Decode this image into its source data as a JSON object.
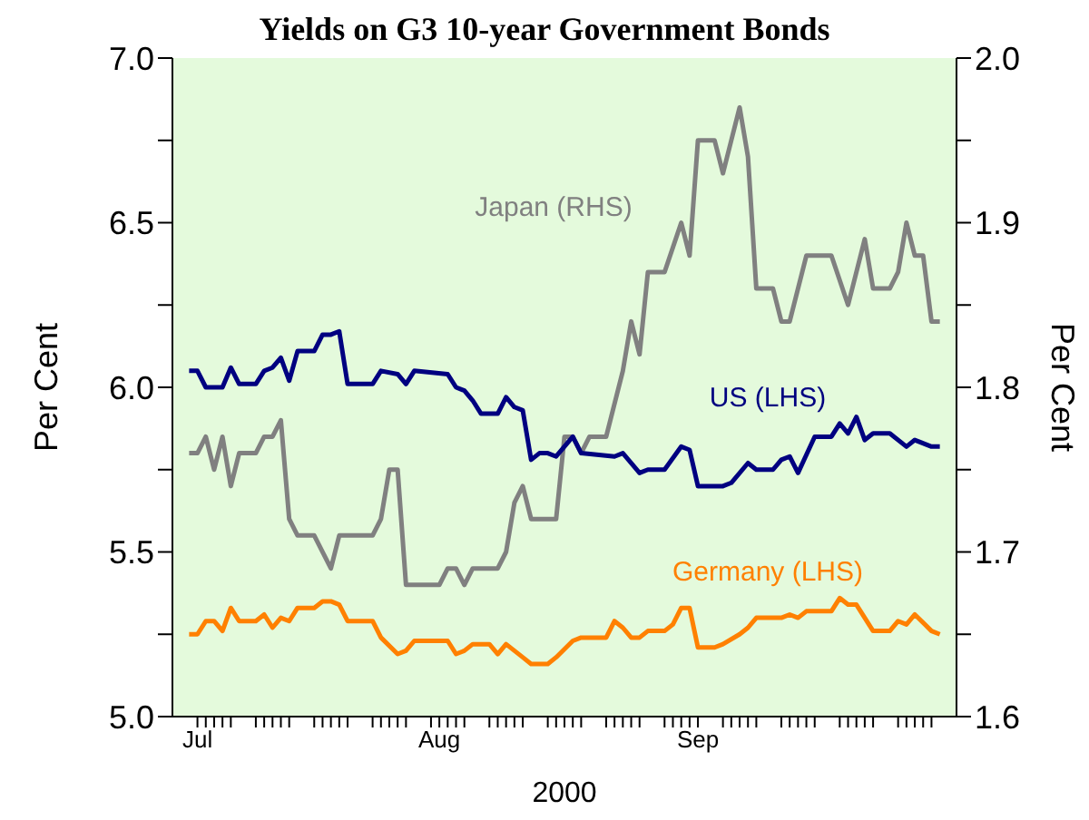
{
  "chart_data": {
    "type": "line",
    "title": "Yields on G3 10-year Government Bonds",
    "xlabel": "2000",
    "ylabel": "Per Cent",
    "y2label": "Per Cent",
    "xlim": [
      "2000-06-30",
      "2000-10-02"
    ],
    "xticks": [
      {
        "value": "2000-07-03",
        "label": "Jul"
      },
      {
        "value": "2000-07-04",
        "label": null
      },
      {
        "value": "2000-07-05",
        "label": null
      },
      {
        "value": "2000-07-06",
        "label": null
      },
      {
        "value": "2000-07-07",
        "label": null
      },
      {
        "value": "2000-07-10",
        "label": null
      },
      {
        "value": "2000-07-11",
        "label": null
      },
      {
        "value": "2000-07-12",
        "label": null
      },
      {
        "value": "2000-07-13",
        "label": null
      },
      {
        "value": "2000-07-14",
        "label": null
      },
      {
        "value": "2000-07-17",
        "label": null
      },
      {
        "value": "2000-07-18",
        "label": null
      },
      {
        "value": "2000-07-19",
        "label": null
      },
      {
        "value": "2000-07-20",
        "label": null
      },
      {
        "value": "2000-07-21",
        "label": null
      },
      {
        "value": "2000-07-24",
        "label": null
      },
      {
        "value": "2000-07-25",
        "label": null
      },
      {
        "value": "2000-07-26",
        "label": null
      },
      {
        "value": "2000-07-27",
        "label": null
      },
      {
        "value": "2000-07-28",
        "label": null
      },
      {
        "value": "2000-07-31",
        "label": null
      },
      {
        "value": "2000-08-01",
        "label": "Aug"
      },
      {
        "value": "2000-08-02",
        "label": null
      },
      {
        "value": "2000-08-03",
        "label": null
      },
      {
        "value": "2000-08-04",
        "label": null
      },
      {
        "value": "2000-08-07",
        "label": null
      },
      {
        "value": "2000-08-08",
        "label": null
      },
      {
        "value": "2000-08-09",
        "label": null
      },
      {
        "value": "2000-08-10",
        "label": null
      },
      {
        "value": "2000-08-11",
        "label": null
      },
      {
        "value": "2000-08-14",
        "label": null
      },
      {
        "value": "2000-08-15",
        "label": null
      },
      {
        "value": "2000-08-16",
        "label": null
      },
      {
        "value": "2000-08-17",
        "label": null
      },
      {
        "value": "2000-08-18",
        "label": null
      },
      {
        "value": "2000-08-21",
        "label": null
      },
      {
        "value": "2000-08-22",
        "label": null
      },
      {
        "value": "2000-08-23",
        "label": null
      },
      {
        "value": "2000-08-24",
        "label": null
      },
      {
        "value": "2000-08-25",
        "label": null
      },
      {
        "value": "2000-08-28",
        "label": null
      },
      {
        "value": "2000-08-29",
        "label": null
      },
      {
        "value": "2000-08-30",
        "label": null
      },
      {
        "value": "2000-08-31",
        "label": null
      },
      {
        "value": "2000-09-01",
        "label": "Sep"
      },
      {
        "value": "2000-09-04",
        "label": null
      },
      {
        "value": "2000-09-05",
        "label": null
      },
      {
        "value": "2000-09-06",
        "label": null
      },
      {
        "value": "2000-09-07",
        "label": null
      },
      {
        "value": "2000-09-08",
        "label": null
      },
      {
        "value": "2000-09-11",
        "label": null
      },
      {
        "value": "2000-09-12",
        "label": null
      },
      {
        "value": "2000-09-13",
        "label": null
      },
      {
        "value": "2000-09-14",
        "label": null
      },
      {
        "value": "2000-09-15",
        "label": null
      },
      {
        "value": "2000-09-18",
        "label": null
      },
      {
        "value": "2000-09-19",
        "label": null
      },
      {
        "value": "2000-09-20",
        "label": null
      },
      {
        "value": "2000-09-21",
        "label": null
      },
      {
        "value": "2000-09-22",
        "label": null
      },
      {
        "value": "2000-09-25",
        "label": null
      },
      {
        "value": "2000-09-26",
        "label": null
      },
      {
        "value": "2000-09-27",
        "label": null
      },
      {
        "value": "2000-09-28",
        "label": null
      },
      {
        "value": "2000-09-29",
        "label": null
      }
    ],
    "ylim": [
      5.0,
      7.0
    ],
    "yticks": [
      {
        "value": 5,
        "label": "5.0"
      },
      {
        "value": 5.25,
        "label": null
      },
      5.5,
      {
        "value": 5.75,
        "label": null
      },
      {
        "value": 6,
        "label": "6.0"
      },
      {
        "value": 6.25,
        "label": null
      },
      6.5,
      {
        "value": 6.75,
        "label": null
      },
      {
        "value": 7,
        "label": "7.0"
      }
    ],
    "y2lim": [
      1.6,
      2.0
    ],
    "y2ticks": [
      1.6,
      {
        "value": 1.65,
        "label": null
      },
      1.7,
      {
        "value": 1.75,
        "label": null
      },
      1.8,
      {
        "value": 1.85,
        "label": null
      },
      1.9,
      {
        "value": 1.95,
        "label": null
      },
      {
        "value": 2,
        "label": "2.0"
      }
    ],
    "grid": false,
    "legend": false,
    "marker": "none",
    "series": [
      {
        "name": "Japan (RHS)",
        "color": "#808080",
        "axis": "y2",
        "x": [
          "2000-07-02",
          "2000-07-03",
          "2000-07-04",
          "2000-07-05",
          "2000-07-06",
          "2000-07-07",
          "2000-07-08",
          "2000-07-10",
          "2000-07-11",
          "2000-07-12",
          "2000-07-13",
          "2000-07-14",
          "2000-07-15",
          "2000-07-17",
          "2000-07-19",
          "2000-07-20",
          "2000-07-24",
          "2000-07-25",
          "2000-07-26",
          "2000-07-27",
          "2000-07-28",
          "2000-08-01",
          "2000-08-02",
          "2000-08-03",
          "2000-08-04",
          "2000-08-05",
          "2000-08-07",
          "2000-08-08",
          "2000-08-09",
          "2000-08-10",
          "2000-08-11",
          "2000-08-12",
          "2000-08-15",
          "2000-08-16",
          "2000-08-17",
          "2000-08-18",
          "2000-08-19",
          "2000-08-21",
          "2000-08-23",
          "2000-08-24",
          "2000-08-25",
          "2000-08-26",
          "2000-08-28",
          "2000-08-30",
          "2000-08-31",
          "2000-09-01",
          "2000-09-03",
          "2000-09-04",
          "2000-09-05",
          "2000-09-06",
          "2000-09-07",
          "2000-09-08",
          "2000-09-10",
          "2000-09-11",
          "2000-09-12",
          "2000-09-14",
          "2000-09-17",
          "2000-09-19",
          "2000-09-21",
          "2000-09-22",
          "2000-09-24",
          "2000-09-25",
          "2000-09-26",
          "2000-09-27",
          "2000-09-28",
          "2000-09-29",
          "2000-09-30"
        ],
        "values": [
          1.76,
          1.76,
          1.77,
          1.75,
          1.77,
          1.74,
          1.76,
          1.76,
          1.77,
          1.77,
          1.78,
          1.72,
          1.71,
          1.71,
          1.69,
          1.71,
          1.71,
          1.72,
          1.75,
          1.75,
          1.68,
          1.68,
          1.69,
          1.69,
          1.68,
          1.69,
          1.69,
          1.69,
          1.7,
          1.73,
          1.74,
          1.72,
          1.72,
          1.77,
          1.77,
          1.76,
          1.77,
          1.77,
          1.81,
          1.84,
          1.82,
          1.87,
          1.87,
          1.9,
          1.88,
          1.95,
          1.95,
          1.93,
          1.95,
          1.97,
          1.94,
          1.86,
          1.86,
          1.84,
          1.84,
          1.88,
          1.88,
          1.85,
          1.89,
          1.86,
          1.86,
          1.87,
          1.9,
          1.88,
          1.88,
          1.84,
          1.84
        ]
      },
      {
        "name": "US (LHS)",
        "color": "#000080",
        "x": [
          "2000-07-02",
          "2000-07-03",
          "2000-07-04",
          "2000-07-06",
          "2000-07-07",
          "2000-07-08",
          "2000-07-10",
          "2000-07-11",
          "2000-07-12",
          "2000-07-13",
          "2000-07-14",
          "2000-07-15",
          "2000-07-17",
          "2000-07-18",
          "2000-07-19",
          "2000-07-20",
          "2000-07-21",
          "2000-07-24",
          "2000-07-25",
          "2000-07-27",
          "2000-07-28",
          "2000-07-29",
          "2000-08-02",
          "2000-08-03",
          "2000-08-04",
          "2000-08-05",
          "2000-08-06",
          "2000-08-08",
          "2000-08-09",
          "2000-08-10",
          "2000-08-11",
          "2000-08-12",
          "2000-08-13",
          "2000-08-14",
          "2000-08-15",
          "2000-08-17",
          "2000-08-18",
          "2000-08-22",
          "2000-08-23",
          "2000-08-25",
          "2000-08-26",
          "2000-08-28",
          "2000-08-30",
          "2000-08-31",
          "2000-09-01",
          "2000-09-04",
          "2000-09-05",
          "2000-09-07",
          "2000-09-08",
          "2000-09-10",
          "2000-09-11",
          "2000-09-12",
          "2000-09-13",
          "2000-09-15",
          "2000-09-17",
          "2000-09-18",
          "2000-09-19",
          "2000-09-20",
          "2000-09-21",
          "2000-09-22",
          "2000-09-24",
          "2000-09-26",
          "2000-09-27",
          "2000-09-29",
          "2000-09-30"
        ],
        "values": [
          6.05,
          6.05,
          6.0,
          6.0,
          6.06,
          6.01,
          6.01,
          6.05,
          6.06,
          6.09,
          6.02,
          6.11,
          6.11,
          6.16,
          6.16,
          6.17,
          6.01,
          6.01,
          6.05,
          6.04,
          6.01,
          6.05,
          6.04,
          6.0,
          5.99,
          5.96,
          5.92,
          5.92,
          5.97,
          5.94,
          5.93,
          5.78,
          5.8,
          5.8,
          5.79,
          5.85,
          5.8,
          5.79,
          5.8,
          5.74,
          5.75,
          5.75,
          5.82,
          5.81,
          5.7,
          5.7,
          5.71,
          5.77,
          5.75,
          5.75,
          5.78,
          5.79,
          5.74,
          5.85,
          5.85,
          5.89,
          5.86,
          5.91,
          5.84,
          5.86,
          5.86,
          5.82,
          5.84,
          5.82,
          5.82
        ]
      },
      {
        "name": "Germany (LHS)",
        "color": "#ff8000",
        "x": [
          "2000-07-02",
          "2000-07-03",
          "2000-07-04",
          "2000-07-05",
          "2000-07-06",
          "2000-07-07",
          "2000-07-08",
          "2000-07-10",
          "2000-07-11",
          "2000-07-12",
          "2000-07-13",
          "2000-07-14",
          "2000-07-15",
          "2000-07-17",
          "2000-07-18",
          "2000-07-19",
          "2000-07-20",
          "2000-07-21",
          "2000-07-22",
          "2000-07-24",
          "2000-07-25",
          "2000-07-27",
          "2000-07-28",
          "2000-07-29",
          "2000-07-31",
          "2000-08-01",
          "2000-08-02",
          "2000-08-03",
          "2000-08-04",
          "2000-08-05",
          "2000-08-07",
          "2000-08-08",
          "2000-08-09",
          "2000-08-10",
          "2000-08-11",
          "2000-08-12",
          "2000-08-14",
          "2000-08-15",
          "2000-08-17",
          "2000-08-18",
          "2000-08-21",
          "2000-08-22",
          "2000-08-23",
          "2000-08-24",
          "2000-08-25",
          "2000-08-26",
          "2000-08-28",
          "2000-08-29",
          "2000-08-30",
          "2000-08-31",
          "2000-09-01",
          "2000-09-03",
          "2000-09-04",
          "2000-09-06",
          "2000-09-07",
          "2000-09-08",
          "2000-09-11",
          "2000-09-12",
          "2000-09-13",
          "2000-09-14",
          "2000-09-17",
          "2000-09-18",
          "2000-09-19",
          "2000-09-20",
          "2000-09-22",
          "2000-09-24",
          "2000-09-25",
          "2000-09-26",
          "2000-09-27",
          "2000-09-29",
          "2000-09-30"
        ],
        "values": [
          5.25,
          5.25,
          5.29,
          5.29,
          5.26,
          5.33,
          5.29,
          5.29,
          5.31,
          5.27,
          5.3,
          5.29,
          5.33,
          5.33,
          5.35,
          5.35,
          5.34,
          5.29,
          5.29,
          5.29,
          5.24,
          5.19,
          5.2,
          5.23,
          5.23,
          5.23,
          5.23,
          5.19,
          5.2,
          5.22,
          5.22,
          5.19,
          5.22,
          5.2,
          5.18,
          5.16,
          5.16,
          5.18,
          5.23,
          5.24,
          5.24,
          5.29,
          5.27,
          5.24,
          5.24,
          5.26,
          5.26,
          5.28,
          5.33,
          5.33,
          5.21,
          5.21,
          5.22,
          5.25,
          5.27,
          5.3,
          5.3,
          5.31,
          5.3,
          5.32,
          5.32,
          5.36,
          5.34,
          5.34,
          5.26,
          5.26,
          5.29,
          5.28,
          5.31,
          5.26,
          5.25
        ]
      }
    ]
  }
}
